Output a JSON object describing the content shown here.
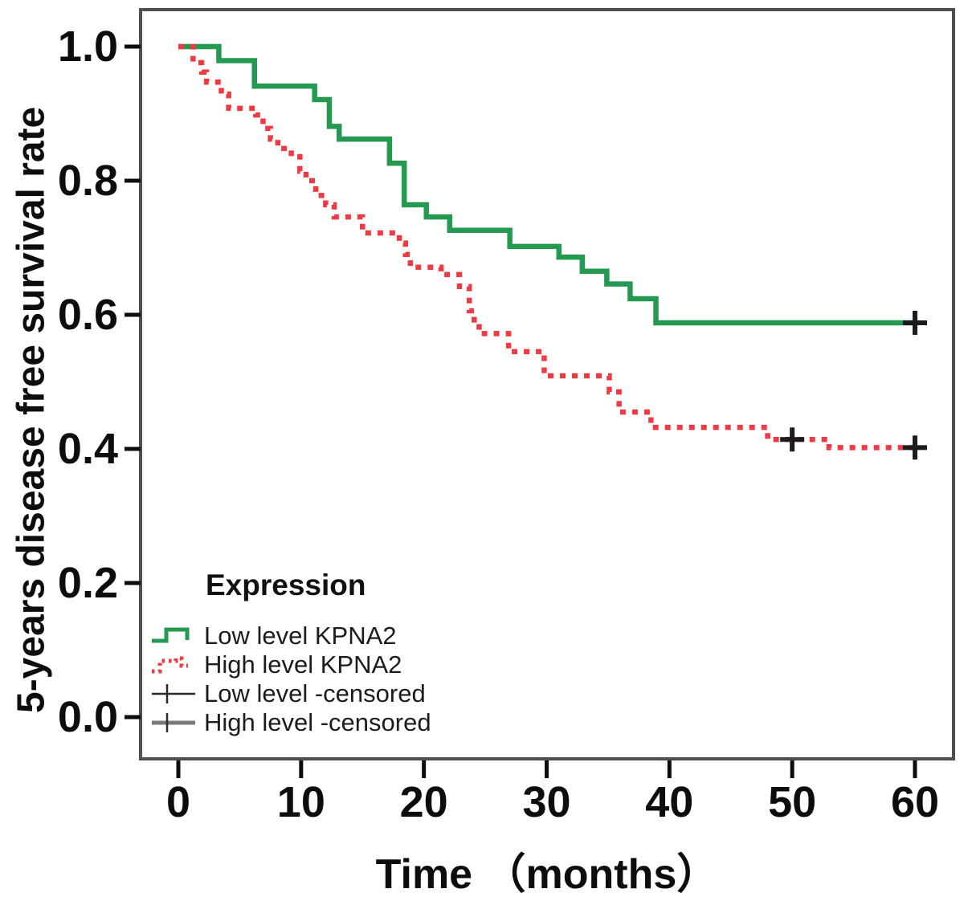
{
  "figure": {
    "background": "#ffffff",
    "frame_color": "#4f4f4f",
    "text_color": "#0d0d0d"
  },
  "chart_data": {
    "type": "line",
    "subtype": "kaplan-meier-step-curves",
    "title": "",
    "xlabel": "Time （months）",
    "ylabel": "5-years disease free survival rate",
    "xlim": [
      0,
      60
    ],
    "ylim": [
      0.0,
      1.0
    ],
    "grid": false,
    "legend_position": "inside bottom-left",
    "x_ticks": [
      0,
      10,
      20,
      30,
      40,
      50,
      60
    ],
    "x_tick_labels": [
      "0",
      "10",
      "20",
      "30",
      "40",
      "50",
      "60"
    ],
    "y_ticks": [
      0.0,
      0.2,
      0.4,
      0.6,
      0.8,
      1.0
    ],
    "y_tick_labels": [
      "0.0",
      "0.2",
      "0.4",
      "0.6",
      "0.8",
      "1.0"
    ],
    "censor_marker": "plus",
    "censor_color": "#1c1c1c",
    "series": [
      {
        "name": "Low level KPNA2",
        "line_style": "solid",
        "color": "#249a50",
        "points": [
          [
            0,
            1.0
          ],
          [
            3.3,
            0.979
          ],
          [
            6.2,
            0.941
          ],
          [
            11.1,
            0.921
          ],
          [
            12.3,
            0.881
          ],
          [
            13.1,
            0.862
          ],
          [
            17.2,
            0.826
          ],
          [
            18.4,
            0.764
          ],
          [
            20.2,
            0.746
          ],
          [
            22.1,
            0.726
          ],
          [
            27.0,
            0.702
          ],
          [
            31.0,
            0.686
          ],
          [
            32.9,
            0.665
          ],
          [
            34.9,
            0.646
          ],
          [
            36.8,
            0.624
          ],
          [
            38.9,
            0.588
          ],
          [
            60,
            0.588
          ]
        ],
        "censored": [
          [
            60,
            0.588
          ]
        ]
      },
      {
        "name": "High level KPNA2",
        "line_style": "dotted",
        "color": "#ee3a43",
        "points": [
          [
            0,
            1.0
          ],
          [
            1.2,
            0.976
          ],
          [
            1.9,
            0.962
          ],
          [
            2.3,
            0.947
          ],
          [
            3.5,
            0.929
          ],
          [
            4.1,
            0.908
          ],
          [
            6.3,
            0.898
          ],
          [
            6.9,
            0.878
          ],
          [
            7.5,
            0.862
          ],
          [
            8.1,
            0.848
          ],
          [
            9.2,
            0.836
          ],
          [
            9.9,
            0.814
          ],
          [
            10.4,
            0.8
          ],
          [
            11.2,
            0.778
          ],
          [
            12.0,
            0.764
          ],
          [
            12.7,
            0.746
          ],
          [
            15.0,
            0.722
          ],
          [
            18.0,
            0.707
          ],
          [
            18.5,
            0.69
          ],
          [
            18.9,
            0.671
          ],
          [
            21.4,
            0.66
          ],
          [
            22.9,
            0.642
          ],
          [
            23.7,
            0.606
          ],
          [
            24.1,
            0.587
          ],
          [
            24.5,
            0.572
          ],
          [
            26.9,
            0.545
          ],
          [
            29.8,
            0.509
          ],
          [
            35.1,
            0.485
          ],
          [
            35.9,
            0.455
          ],
          [
            38.5,
            0.432
          ],
          [
            48.0,
            0.414
          ],
          [
            53.0,
            0.402
          ],
          [
            60,
            0.402
          ]
        ],
        "censored": [
          [
            50,
            0.414
          ],
          [
            60,
            0.402
          ]
        ]
      }
    ],
    "legend": {
      "title": "Expression",
      "items": [
        {
          "label": "Low level KPNA2",
          "marker": "solid-step-line"
        },
        {
          "label": "High level KPNA2",
          "marker": "dotted-step-line"
        },
        {
          "label": "Low level -censored",
          "marker": "plus-on-thin-line"
        },
        {
          "label": "High level -censored",
          "marker": "plus-on-thick-line"
        }
      ]
    }
  }
}
